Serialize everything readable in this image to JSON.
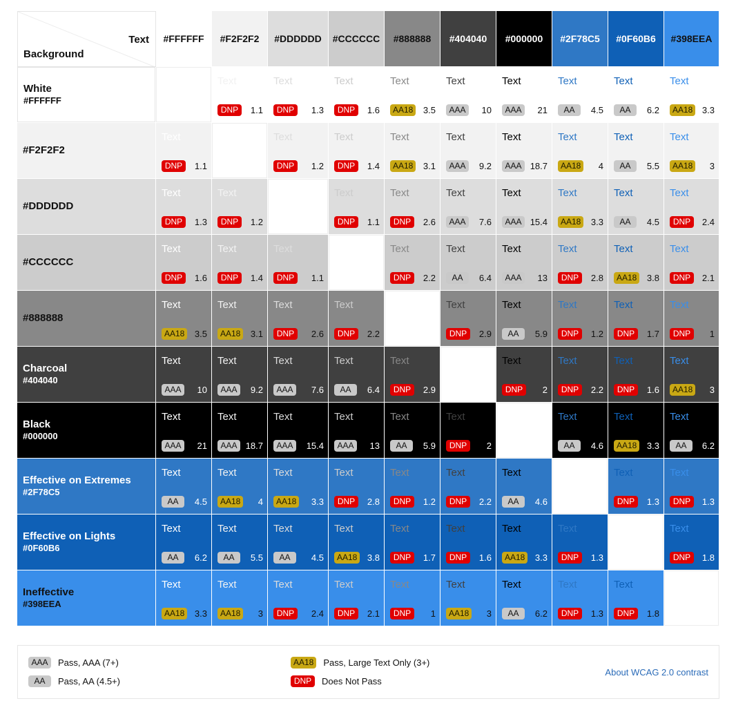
{
  "corner": {
    "text_label": "Text",
    "background_label": "Background"
  },
  "text_colors": [
    "#FFFFFF",
    "#F2F2F2",
    "#DDDDDD",
    "#CCCCCC",
    "#888888",
    "#404040",
    "#000000",
    "#2F78C5",
    "#0F60B6",
    "#398EEA"
  ],
  "columns": [
    {
      "label": "#FFFFFF",
      "bg": "#FFFFFF",
      "fg": "#111111"
    },
    {
      "label": "#F2F2F2",
      "bg": "#F2F2F2",
      "fg": "#111111"
    },
    {
      "label": "#DDDDDD",
      "bg": "#DDDDDD",
      "fg": "#111111"
    },
    {
      "label": "#CCCCCC",
      "bg": "#CCCCCC",
      "fg": "#111111"
    },
    {
      "label": "#888888",
      "bg": "#888888",
      "fg": "#111111"
    },
    {
      "label": "#404040",
      "bg": "#404040",
      "fg": "#FFFFFF"
    },
    {
      "label": "#000000",
      "bg": "#000000",
      "fg": "#FFFFFF"
    },
    {
      "label": "#2F78C5",
      "bg": "#2F78C5",
      "fg": "#FFFFFF"
    },
    {
      "label": "#0F60B6",
      "bg": "#0F60B6",
      "fg": "#FFFFFF"
    },
    {
      "label": "#398EEA",
      "bg": "#398EEA",
      "fg": "#111111"
    }
  ],
  "rows": [
    {
      "name": "White",
      "hex": "#FFFFFF",
      "bg": "#FFFFFF",
      "fg": "#111111",
      "cells": [
        null,
        [
          "Text",
          "DNP",
          "1.1"
        ],
        [
          "Text",
          "DNP",
          "1.3"
        ],
        [
          "Text",
          "DNP",
          "1.6"
        ],
        [
          "Text",
          "AA18",
          "3.5"
        ],
        [
          "Text",
          "AAA",
          "10"
        ],
        [
          "Text",
          "AAA",
          "21"
        ],
        [
          "Text",
          "AA",
          "4.5"
        ],
        [
          "Text",
          "AA",
          "6.2"
        ],
        [
          "Text",
          "AA18",
          "3.3"
        ]
      ]
    },
    {
      "name": "#F2F2F2",
      "hex": "",
      "bg": "#F2F2F2",
      "fg": "#111111",
      "cells": [
        [
          "Text",
          "DNP",
          "1.1"
        ],
        null,
        [
          "Text",
          "DNP",
          "1.2"
        ],
        [
          "Text",
          "DNP",
          "1.4"
        ],
        [
          "Text",
          "AA18",
          "3.1"
        ],
        [
          "Text",
          "AAA",
          "9.2"
        ],
        [
          "Text",
          "AAA",
          "18.7"
        ],
        [
          "Text",
          "AA18",
          "4"
        ],
        [
          "Text",
          "AA",
          "5.5"
        ],
        [
          "Text",
          "AA18",
          "3"
        ]
      ]
    },
    {
      "name": "#DDDDDD",
      "hex": "",
      "bg": "#DDDDDD",
      "fg": "#111111",
      "cells": [
        [
          "Text",
          "DNP",
          "1.3"
        ],
        [
          "Text",
          "DNP",
          "1.2"
        ],
        null,
        [
          "Text",
          "DNP",
          "1.1"
        ],
        [
          "Text",
          "DNP",
          "2.6"
        ],
        [
          "Text",
          "AAA",
          "7.6"
        ],
        [
          "Text",
          "AAA",
          "15.4"
        ],
        [
          "Text",
          "AA18",
          "3.3"
        ],
        [
          "Text",
          "AA",
          "4.5"
        ],
        [
          "Text",
          "DNP",
          "2.4"
        ]
      ]
    },
    {
      "name": "#CCCCCC",
      "hex": "",
      "bg": "#CCCCCC",
      "fg": "#111111",
      "cells": [
        [
          "Text",
          "DNP",
          "1.6"
        ],
        [
          "Text",
          "DNP",
          "1.4"
        ],
        [
          "Text",
          "DNP",
          "1.1"
        ],
        null,
        [
          "Text",
          "DNP",
          "2.2"
        ],
        [
          "Text",
          "AA",
          "6.4"
        ],
        [
          "Text",
          "AAA",
          "13"
        ],
        [
          "Text",
          "DNP",
          "2.8"
        ],
        [
          "Text",
          "AA18",
          "3.8"
        ],
        [
          "Text",
          "DNP",
          "2.1"
        ]
      ]
    },
    {
      "name": "#888888",
      "hex": "",
      "bg": "#888888",
      "fg": "#111111",
      "cells": [
        [
          "Text",
          "AA18",
          "3.5"
        ],
        [
          "Text",
          "AA18",
          "3.1"
        ],
        [
          "Text",
          "DNP",
          "2.6"
        ],
        [
          "Text",
          "DNP",
          "2.2"
        ],
        null,
        [
          "Text",
          "DNP",
          "2.9"
        ],
        [
          "Text",
          "AA",
          "5.9"
        ],
        [
          "Text",
          "DNP",
          "1.2"
        ],
        [
          "Text",
          "DNP",
          "1.7"
        ],
        [
          "Text",
          "DNP",
          "1"
        ]
      ]
    },
    {
      "name": "Charcoal",
      "hex": "#404040",
      "bg": "#404040",
      "fg": "#FFFFFF",
      "cells": [
        [
          "Text",
          "AAA",
          "10"
        ],
        [
          "Text",
          "AAA",
          "9.2"
        ],
        [
          "Text",
          "AAA",
          "7.6"
        ],
        [
          "Text",
          "AA",
          "6.4"
        ],
        [
          "Text",
          "DNP",
          "2.9"
        ],
        null,
        [
          "Text",
          "DNP",
          "2"
        ],
        [
          "Text",
          "DNP",
          "2.2"
        ],
        [
          "Text",
          "DNP",
          "1.6"
        ],
        [
          "Text",
          "AA18",
          "3"
        ]
      ]
    },
    {
      "name": "Black",
      "hex": "#000000",
      "bg": "#000000",
      "fg": "#FFFFFF",
      "cells": [
        [
          "Text",
          "AAA",
          "21"
        ],
        [
          "Text",
          "AAA",
          "18.7"
        ],
        [
          "Text",
          "AAA",
          "15.4"
        ],
        [
          "Text",
          "AAA",
          "13"
        ],
        [
          "Text",
          "AA",
          "5.9"
        ],
        [
          "Text",
          "DNP",
          "2"
        ],
        null,
        [
          "Text",
          "AA",
          "4.6"
        ],
        [
          "Text",
          "AA18",
          "3.3"
        ],
        [
          "Text",
          "AA",
          "6.2"
        ]
      ]
    },
    {
      "name": "Effective on Extremes",
      "hex": "#2F78C5",
      "bg": "#2F78C5",
      "fg": "#FFFFFF",
      "cells": [
        [
          "Text",
          "AA",
          "4.5"
        ],
        [
          "Text",
          "AA18",
          "4"
        ],
        [
          "Text",
          "AA18",
          "3.3"
        ],
        [
          "Text",
          "DNP",
          "2.8"
        ],
        [
          "Text",
          "DNP",
          "1.2"
        ],
        [
          "Text",
          "DNP",
          "2.2"
        ],
        [
          "Text",
          "AA",
          "4.6"
        ],
        null,
        [
          "Text",
          "DNP",
          "1.3"
        ],
        [
          "Text",
          "DNP",
          "1.3"
        ]
      ]
    },
    {
      "name": "Effective on Lights",
      "hex": "#0F60B6",
      "bg": "#0F60B6",
      "fg": "#FFFFFF",
      "cells": [
        [
          "Text",
          "AA",
          "6.2"
        ],
        [
          "Text",
          "AA",
          "5.5"
        ],
        [
          "Text",
          "AA",
          "4.5"
        ],
        [
          "Text",
          "AA18",
          "3.8"
        ],
        [
          "Text",
          "DNP",
          "1.7"
        ],
        [
          "Text",
          "DNP",
          "1.6"
        ],
        [
          "Text",
          "AA18",
          "3.3"
        ],
        [
          "Text",
          "DNP",
          "1.3"
        ],
        null,
        [
          "Text",
          "DNP",
          "1.8"
        ]
      ]
    },
    {
      "name": "Ineffective",
      "hex": "#398EEA",
      "bg": "#398EEA",
      "fg": "#111111",
      "cells": [
        [
          "Text",
          "AA18",
          "3.3"
        ],
        [
          "Text",
          "AA18",
          "3"
        ],
        [
          "Text",
          "DNP",
          "2.4"
        ],
        [
          "Text",
          "DNP",
          "2.1"
        ],
        [
          "Text",
          "DNP",
          "1"
        ],
        [
          "Text",
          "AA18",
          "3"
        ],
        [
          "Text",
          "AA",
          "6.2"
        ],
        [
          "Text",
          "DNP",
          "1.3"
        ],
        [
          "Text",
          "DNP",
          "1.8"
        ],
        null
      ]
    }
  ],
  "legend": {
    "items": [
      {
        "badge": "AAA",
        "text": "Pass, AAA (7+)"
      },
      {
        "badge": "AA",
        "text": "Pass, AA (4.5+)"
      },
      {
        "badge": "AA18",
        "text": "Pass, Large Text Only (3+)"
      },
      {
        "badge": "DNP",
        "text": "Does Not Pass"
      }
    ],
    "link": "About WCAG 2.0 contrast"
  }
}
